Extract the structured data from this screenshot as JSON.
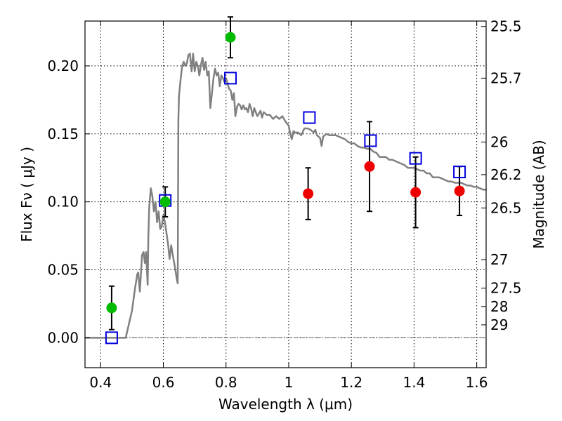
{
  "chart_data": {
    "type": "scatter",
    "xlabel": "Wavelength  λ (μm)",
    "ylabel": "Flux  Fν  ( μJy )",
    "y2label": "Magnitude (AB)",
    "xlim": [
      0.35,
      1.63
    ],
    "ylim": [
      -0.022,
      0.233
    ],
    "grid": true,
    "x_ticks": [
      0.4,
      0.6,
      0.8,
      1.0,
      1.2,
      1.4,
      1.6
    ],
    "x_tick_labels": [
      "0.4",
      "0.6",
      "0.8",
      "1",
      "1.2",
      "1.4",
      "1.6"
    ],
    "y_ticks": [
      0.0,
      0.05,
      0.1,
      0.15,
      0.2
    ],
    "y_tick_labels": [
      "0.00",
      "0.05",
      "0.10",
      "0.15",
      "0.20"
    ],
    "y2_ticks": [
      {
        "flux": 0.229,
        "label": "25.5"
      },
      {
        "flux": 0.191,
        "label": "25.7"
      },
      {
        "flux": 0.144,
        "label": "26"
      },
      {
        "flux": 0.12,
        "label": "26.2"
      },
      {
        "flux": 0.0955,
        "label": "26.5"
      },
      {
        "flux": 0.0575,
        "label": "27"
      },
      {
        "flux": 0.0365,
        "label": "27.5"
      },
      {
        "flux": 0.023,
        "label": "28"
      },
      {
        "flux": 0.0095,
        "label": "29"
      }
    ],
    "zero_line": {
      "y": 0,
      "color": "#666666"
    },
    "series": [
      {
        "marker": "circle",
        "color": "#00bb00",
        "points": [
          {
            "x": 0.435,
            "y": 0.022,
            "err": 0.016
          },
          {
            "x": 0.606,
            "y": 0.1,
            "err": 0.011
          },
          {
            "x": 0.814,
            "y": 0.221,
            "err": 0.015
          }
        ]
      },
      {
        "marker": "circle",
        "color": "#ee0000",
        "points": [
          {
            "x": 1.062,
            "y": 0.106,
            "err": 0.019
          },
          {
            "x": 1.258,
            "y": 0.126,
            "err": 0.033
          },
          {
            "x": 1.405,
            "y": 0.107,
            "err": 0.026
          },
          {
            "x": 1.545,
            "y": 0.108,
            "err": 0.018
          }
        ]
      },
      {
        "marker": "square-open",
        "color": "#0000dd",
        "points": [
          {
            "x": 0.435,
            "y": 0.0
          },
          {
            "x": 0.606,
            "y": 0.101
          },
          {
            "x": 0.814,
            "y": 0.191
          },
          {
            "x": 1.066,
            "y": 0.162
          },
          {
            "x": 1.261,
            "y": 0.145
          },
          {
            "x": 1.405,
            "y": 0.132
          },
          {
            "x": 1.545,
            "y": 0.122
          }
        ]
      },
      {
        "marker": "line",
        "color": "#808080",
        "points": [
          [
            0.35,
            0.0
          ],
          [
            0.48,
            0.0
          ],
          [
            0.487,
            0.007
          ],
          [
            0.5,
            0.02
          ],
          [
            0.51,
            0.037
          ],
          [
            0.517,
            0.047
          ],
          [
            0.52,
            0.048
          ],
          [
            0.525,
            0.034
          ],
          [
            0.532,
            0.061
          ],
          [
            0.537,
            0.063
          ],
          [
            0.541,
            0.055
          ],
          [
            0.545,
            0.063
          ],
          [
            0.55,
            0.039
          ],
          [
            0.552,
            0.073
          ],
          [
            0.555,
            0.096
          ],
          [
            0.56,
            0.11
          ],
          [
            0.565,
            0.104
          ],
          [
            0.57,
            0.093
          ],
          [
            0.575,
            0.1
          ],
          [
            0.58,
            0.085
          ],
          [
            0.585,
            0.093
          ],
          [
            0.59,
            0.08
          ],
          [
            0.595,
            0.082
          ],
          [
            0.6,
            0.09
          ],
          [
            0.605,
            0.085
          ],
          [
            0.61,
            0.077
          ],
          [
            0.615,
            0.069
          ],
          [
            0.62,
            0.058
          ],
          [
            0.625,
            0.068
          ],
          [
            0.63,
            0.061
          ],
          [
            0.637,
            0.052
          ],
          [
            0.643,
            0.043
          ],
          [
            0.646,
            0.04
          ],
          [
            0.648,
            0.16
          ],
          [
            0.65,
            0.178
          ],
          [
            0.655,
            0.19
          ],
          [
            0.66,
            0.2
          ],
          [
            0.665,
            0.203
          ],
          [
            0.67,
            0.2
          ],
          [
            0.675,
            0.202
          ],
          [
            0.68,
            0.208
          ],
          [
            0.685,
            0.209
          ],
          [
            0.69,
            0.196
          ],
          [
            0.695,
            0.209
          ],
          [
            0.7,
            0.196
          ],
          [
            0.705,
            0.203
          ],
          [
            0.71,
            0.2
          ],
          [
            0.715,
            0.193
          ],
          [
            0.72,
            0.201
          ],
          [
            0.725,
            0.206
          ],
          [
            0.73,
            0.197
          ],
          [
            0.735,
            0.203
          ],
          [
            0.74,
            0.193
          ],
          [
            0.745,
            0.196
          ],
          [
            0.75,
            0.169
          ],
          [
            0.755,
            0.18
          ],
          [
            0.76,
            0.191
          ],
          [
            0.765,
            0.198
          ],
          [
            0.77,
            0.193
          ],
          [
            0.775,
            0.195
          ],
          [
            0.78,
            0.185
          ],
          [
            0.785,
            0.193
          ],
          [
            0.79,
            0.191
          ],
          [
            0.795,
            0.188
          ],
          [
            0.8,
            0.191
          ],
          [
            0.805,
            0.187
          ],
          [
            0.81,
            0.183
          ],
          [
            0.815,
            0.182
          ],
          [
            0.82,
            0.175
          ],
          [
            0.825,
            0.18
          ],
          [
            0.83,
            0.163
          ],
          [
            0.835,
            0.17
          ],
          [
            0.84,
            0.172
          ],
          [
            0.845,
            0.171
          ],
          [
            0.85,
            0.168
          ],
          [
            0.855,
            0.171
          ],
          [
            0.86,
            0.168
          ],
          [
            0.865,
            0.169
          ],
          [
            0.87,
            0.166
          ],
          [
            0.875,
            0.172
          ],
          [
            0.88,
            0.169
          ],
          [
            0.885,
            0.163
          ],
          [
            0.89,
            0.169
          ],
          [
            0.895,
            0.166
          ],
          [
            0.9,
            0.163
          ],
          [
            0.905,
            0.165
          ],
          [
            0.91,
            0.167
          ],
          [
            0.915,
            0.162
          ],
          [
            0.92,
            0.166
          ],
          [
            0.93,
            0.164
          ],
          [
            0.94,
            0.164
          ],
          [
            0.95,
            0.161
          ],
          [
            0.96,
            0.163
          ],
          [
            0.97,
            0.161
          ],
          [
            0.98,
            0.163
          ],
          [
            0.99,
            0.159
          ],
          [
            1.0,
            0.156
          ],
          [
            1.005,
            0.15
          ],
          [
            1.01,
            0.146
          ],
          [
            1.015,
            0.152
          ],
          [
            1.02,
            0.151
          ],
          [
            1.03,
            0.151
          ],
          [
            1.04,
            0.149
          ],
          [
            1.05,
            0.154
          ],
          [
            1.06,
            0.154
          ],
          [
            1.07,
            0.153
          ],
          [
            1.08,
            0.151
          ],
          [
            1.085,
            0.153
          ],
          [
            1.09,
            0.149
          ],
          [
            1.1,
            0.147
          ],
          [
            1.105,
            0.141
          ],
          [
            1.11,
            0.148
          ],
          [
            1.12,
            0.15
          ],
          [
            1.13,
            0.149
          ],
          [
            1.14,
            0.149
          ],
          [
            1.15,
            0.149
          ],
          [
            1.16,
            0.148
          ],
          [
            1.17,
            0.147
          ],
          [
            1.18,
            0.146
          ],
          [
            1.19,
            0.144
          ],
          [
            1.2,
            0.143
          ],
          [
            1.21,
            0.143
          ],
          [
            1.22,
            0.141
          ],
          [
            1.23,
            0.14
          ],
          [
            1.24,
            0.14
          ],
          [
            1.25,
            0.139
          ],
          [
            1.26,
            0.139
          ],
          [
            1.27,
            0.137
          ],
          [
            1.28,
            0.136
          ],
          [
            1.29,
            0.133
          ],
          [
            1.3,
            0.133
          ],
          [
            1.31,
            0.133
          ],
          [
            1.32,
            0.131
          ],
          [
            1.33,
            0.131
          ],
          [
            1.34,
            0.13
          ],
          [
            1.35,
            0.129
          ],
          [
            1.36,
            0.128
          ],
          [
            1.37,
            0.127
          ],
          [
            1.38,
            0.125
          ],
          [
            1.39,
            0.125
          ],
          [
            1.4,
            0.125
          ],
          [
            1.41,
            0.124
          ],
          [
            1.42,
            0.123
          ],
          [
            1.43,
            0.123
          ],
          [
            1.44,
            0.121
          ],
          [
            1.45,
            0.121
          ],
          [
            1.46,
            0.118
          ],
          [
            1.47,
            0.118
          ],
          [
            1.48,
            0.118
          ],
          [
            1.49,
            0.117
          ],
          [
            1.5,
            0.116
          ],
          [
            1.51,
            0.115
          ],
          [
            1.52,
            0.115
          ],
          [
            1.53,
            0.114
          ],
          [
            1.54,
            0.114
          ],
          [
            1.55,
            0.114
          ],
          [
            1.56,
            0.113
          ],
          [
            1.57,
            0.112
          ],
          [
            1.58,
            0.112
          ],
          [
            1.59,
            0.111
          ],
          [
            1.6,
            0.111
          ],
          [
            1.61,
            0.11
          ],
          [
            1.62,
            0.109
          ],
          [
            1.63,
            0.109
          ]
        ]
      }
    ]
  }
}
